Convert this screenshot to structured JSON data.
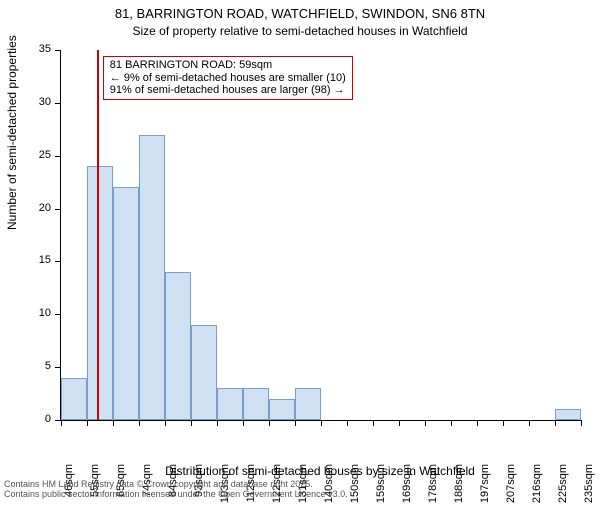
{
  "chart": {
    "type": "histogram",
    "title_main": "81, BARRINGTON ROAD, WATCHFIELD, SWINDON, SN6 8TN",
    "title_sub": "Size of property relative to semi-detached houses in Watchfield",
    "ylabel": "Number of semi-detached properties",
    "xlabel": "Distribution of semi-detached houses by size in Watchfield",
    "background_color": "#ffffff",
    "bar_fill": "#cfe0f2",
    "bar_border": "#7a9ec9",
    "axis_color": "#000000",
    "vline_color": "#cc0000",
    "annot_border": "#cc0000",
    "ylim": [
      0,
      35
    ],
    "ytick_step": 5,
    "x_start": 46,
    "x_step": 9.444,
    "x_count": 21,
    "x_unit": "sqm",
    "bar_values": [
      4,
      24,
      22,
      27,
      14,
      9,
      3,
      3,
      2,
      3,
      0,
      0,
      0,
      0,
      0,
      0,
      0,
      0,
      0,
      1
    ],
    "vline_x_value": 59,
    "annot": {
      "line1": "81 BARRINGTON ROAD: 59sqm",
      "line2": "← 9% of semi-detached houses are smaller (10)",
      "line3": "91% of semi-detached houses are larger (98) →"
    },
    "footer1": "Contains HM Land Registry data © Crown copyright and database right 2025.",
    "footer2": "Contains public sector information licensed under the Open Government Licence v3.0."
  }
}
